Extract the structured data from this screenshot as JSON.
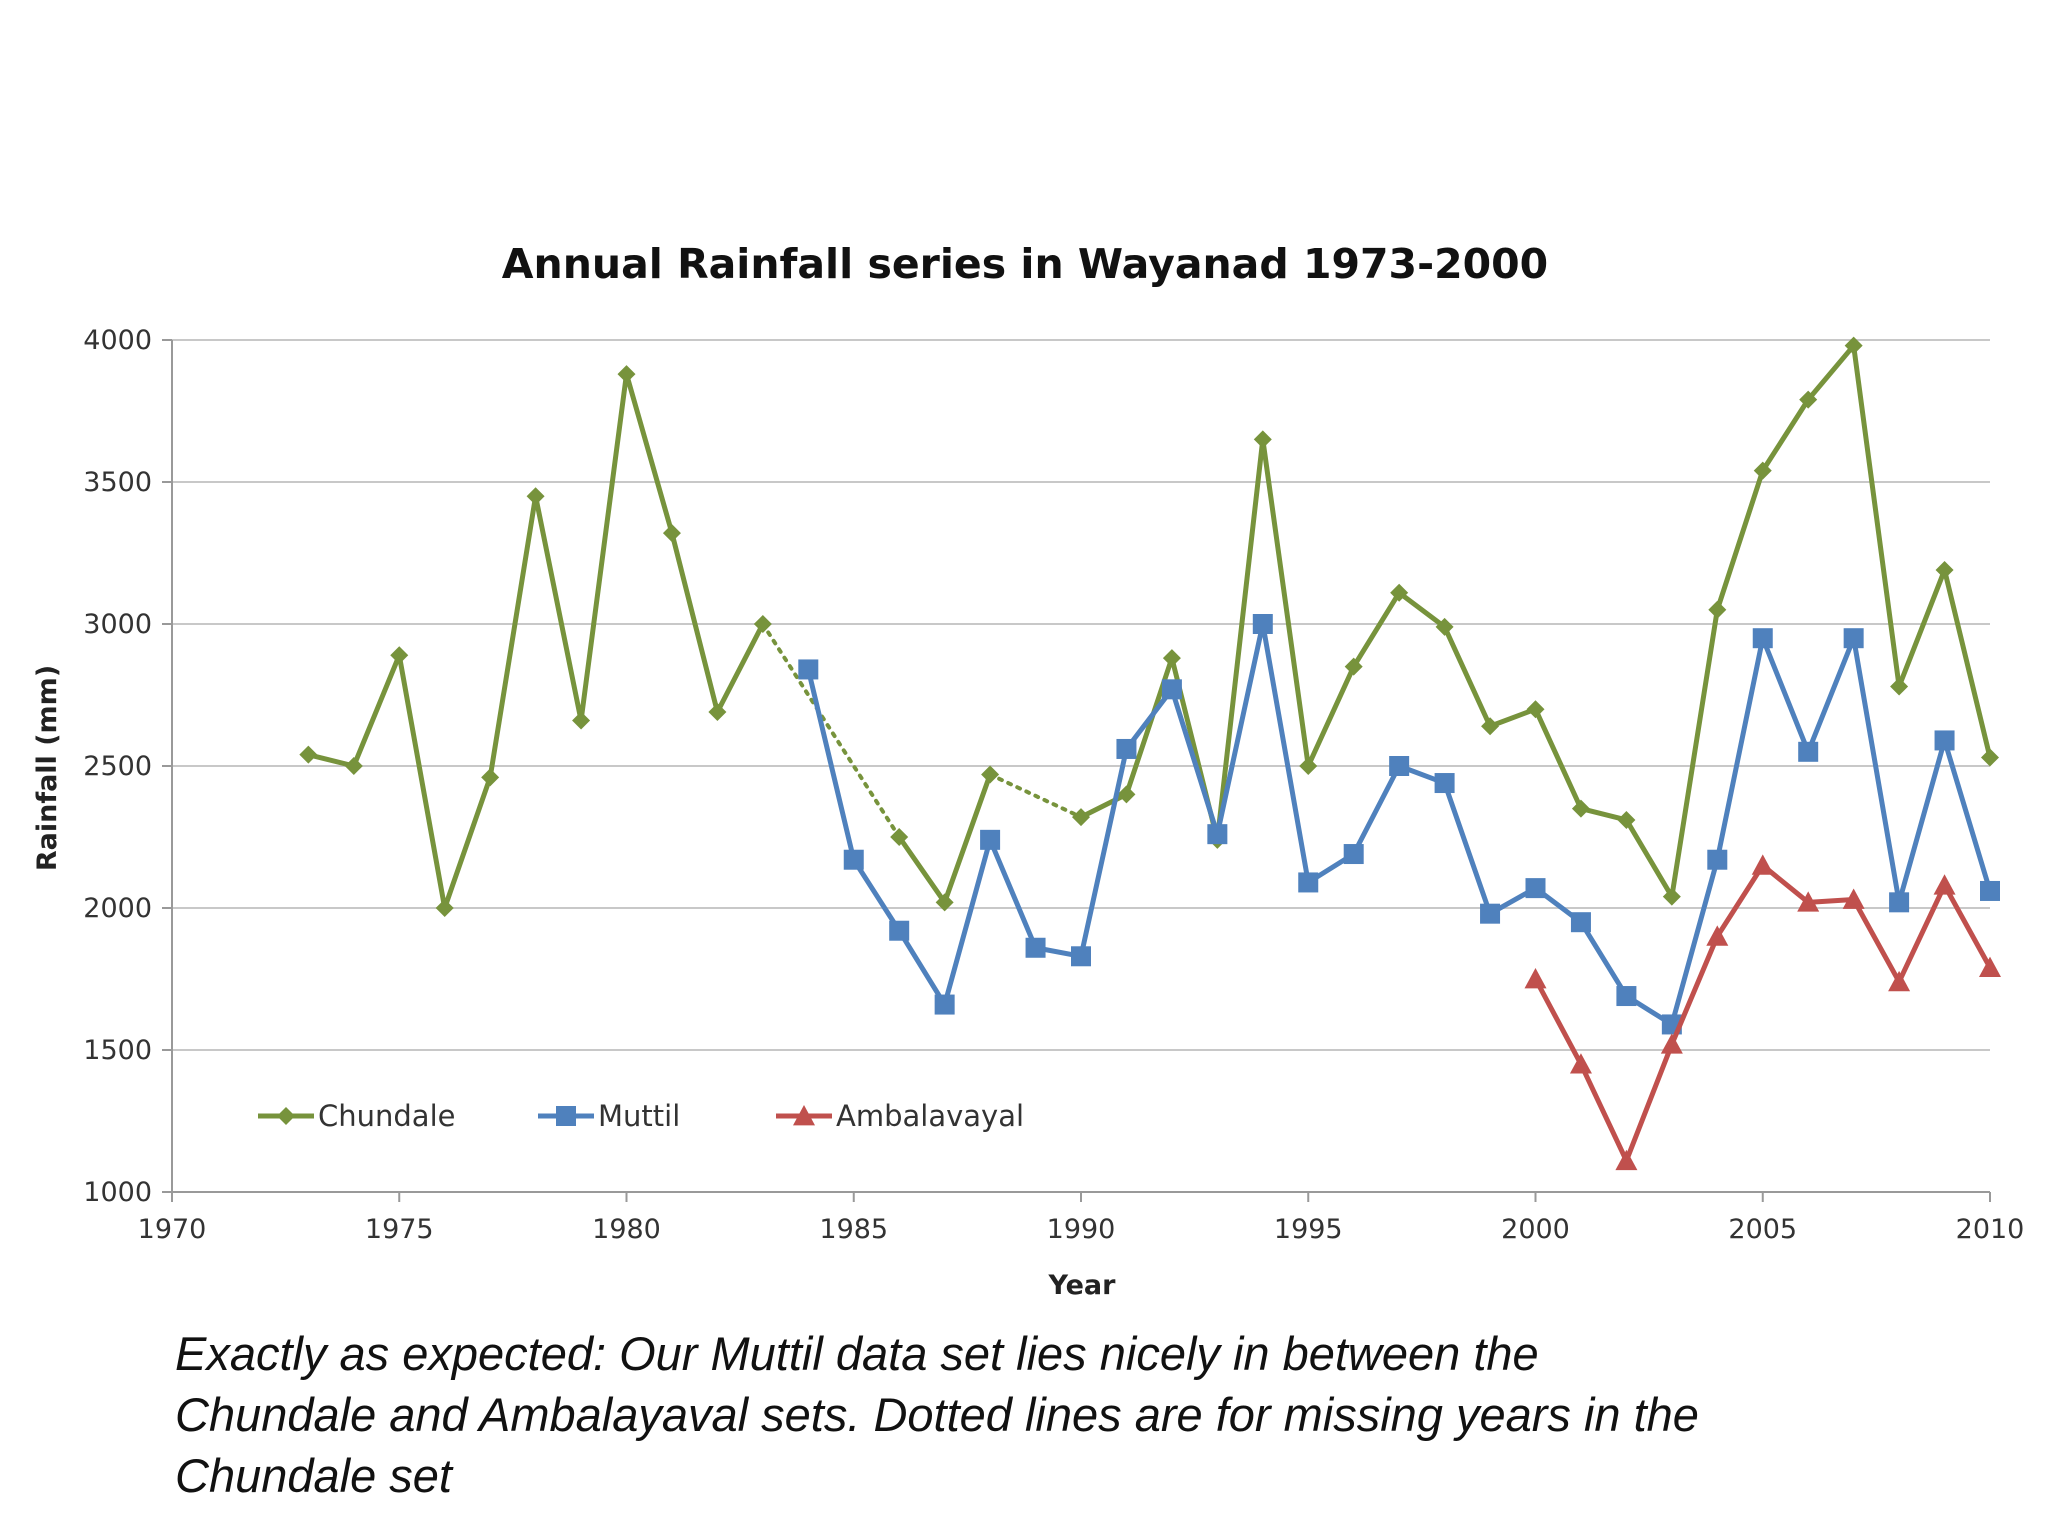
{
  "chart_data": {
    "type": "line",
    "title": "Annual Rainfall series in Wayanad 1973-2000",
    "xlabel": "Year",
    "ylabel": "Rainfall (mm)",
    "xlim": [
      1970,
      2010
    ],
    "ylim": [
      1000,
      4000
    ],
    "xticks": [
      "1970",
      "1975",
      "1980",
      "1985",
      "1990",
      "1995",
      "2000",
      "2005",
      "2010"
    ],
    "yticks": [
      "1000",
      "1500",
      "2000",
      "2500",
      "3000",
      "3500",
      "4000"
    ],
    "grid": true,
    "legend_position": "bottom-left",
    "series": [
      {
        "name": "Chundale",
        "color": "#77933C",
        "marker": "diamond",
        "points": [
          [
            1973,
            2540
          ],
          [
            1974,
            2500
          ],
          [
            1975,
            2890
          ],
          [
            1976,
            2000
          ],
          [
            1977,
            2460
          ],
          [
            1978,
            3450
          ],
          [
            1979,
            2660
          ],
          [
            1980,
            3880
          ],
          [
            1981,
            3320
          ],
          [
            1982,
            2690
          ],
          [
            1983,
            3000
          ],
          [
            1986,
            2250
          ],
          [
            1987,
            2020
          ],
          [
            1988,
            2470
          ],
          [
            1990,
            2320
          ],
          [
            1991,
            2400
          ],
          [
            1992,
            2880
          ],
          [
            1993,
            2240
          ],
          [
            1994,
            3650
          ],
          [
            1995,
            2500
          ],
          [
            1996,
            2850
          ],
          [
            1997,
            3110
          ],
          [
            1998,
            2990
          ],
          [
            1999,
            2640
          ],
          [
            2000,
            2700
          ],
          [
            2001,
            2350
          ],
          [
            2002,
            2310
          ],
          [
            2003,
            2040
          ],
          [
            2004,
            3050
          ],
          [
            2005,
            3540
          ],
          [
            2006,
            3790
          ],
          [
            2007,
            3980
          ],
          [
            2008,
            2780
          ],
          [
            2009,
            3190
          ],
          [
            2010,
            2530
          ]
        ],
        "dotted_gaps": [
          [
            1983,
            1986
          ],
          [
            1988,
            1990
          ]
        ]
      },
      {
        "name": "Muttil",
        "color": "#4F81BD",
        "marker": "square",
        "points": [
          [
            1984,
            2840
          ],
          [
            1985,
            2170
          ],
          [
            1986,
            1920
          ],
          [
            1987,
            1660
          ],
          [
            1988,
            2240
          ],
          [
            1989,
            1860
          ],
          [
            1990,
            1830
          ],
          [
            1991,
            2560
          ],
          [
            1992,
            2770
          ],
          [
            1993,
            2260
          ],
          [
            1994,
            3000
          ],
          [
            1995,
            2090
          ],
          [
            1996,
            2190
          ],
          [
            1997,
            2500
          ],
          [
            1998,
            2440
          ],
          [
            1999,
            1980
          ],
          [
            2000,
            2070
          ],
          [
            2001,
            1950
          ],
          [
            2002,
            1690
          ],
          [
            2003,
            1590
          ],
          [
            2004,
            2170
          ],
          [
            2005,
            2950
          ],
          [
            2006,
            2550
          ],
          [
            2007,
            2950
          ],
          [
            2008,
            2020
          ],
          [
            2009,
            2590
          ],
          [
            2010,
            2060
          ]
        ]
      },
      {
        "name": "Ambalavayal",
        "color": "#C0504D",
        "marker": "triangle",
        "points": [
          [
            2000,
            1750
          ],
          [
            2001,
            1450
          ],
          [
            2002,
            1110
          ],
          [
            2003,
            1520
          ],
          [
            2004,
            1900
          ],
          [
            2005,
            2150
          ],
          [
            2006,
            2020
          ],
          [
            2007,
            2030
          ],
          [
            2008,
            1740
          ],
          [
            2009,
            2080
          ],
          [
            2010,
            1790
          ]
        ]
      }
    ]
  },
  "caption": {
    "line1": "Exactly as expected: Our Muttil data set lies nicely in between the",
    "line2": "Chundale and Ambalayaval sets. Dotted lines are for missing years in the",
    "line3": "Chundale set"
  }
}
